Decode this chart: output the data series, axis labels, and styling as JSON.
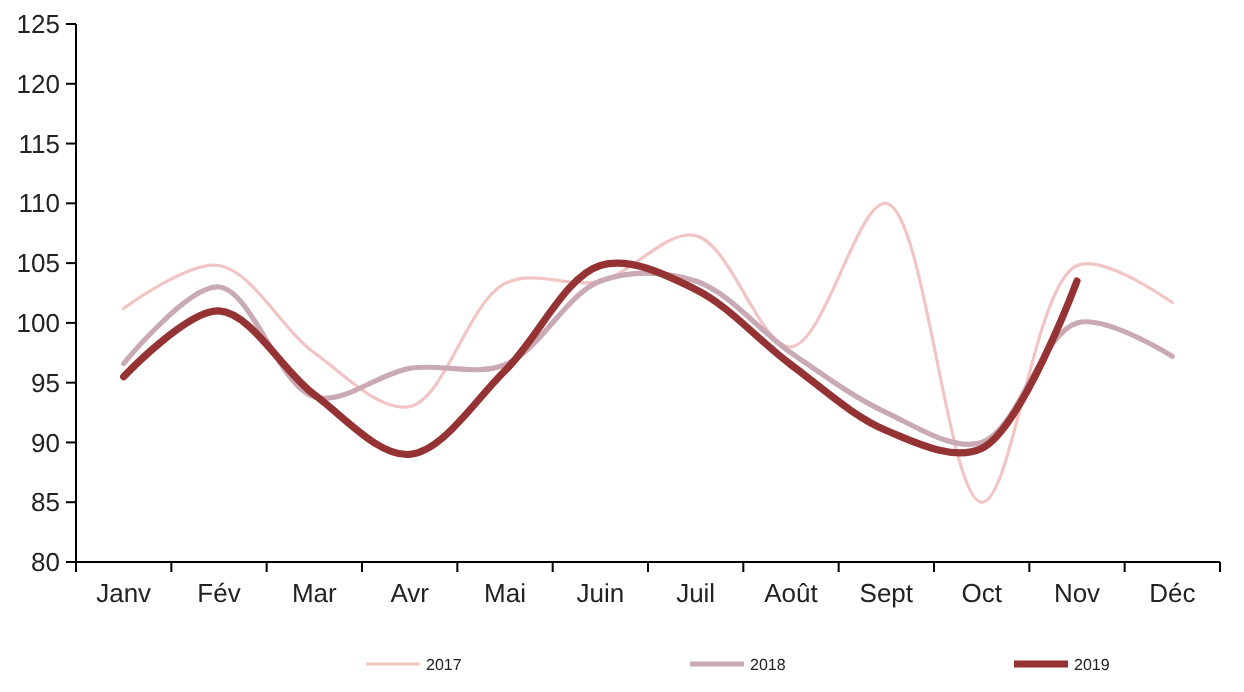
{
  "chart_data": {
    "type": "line",
    "categories": [
      "Janv",
      "Fév",
      "Mar",
      "Avr",
      "Mai",
      "Juin",
      "Juil",
      "Août",
      "Sept",
      "Oct",
      "Nov",
      "Déc"
    ],
    "series": [
      {
        "name": "2017",
        "color": "#f2c4c4",
        "values": [
          101.2,
          104.8,
          97.5,
          93,
          103.3,
          103.5,
          107.3,
          98,
          110,
          85,
          104.8,
          101.7
        ]
      },
      {
        "name": "2018",
        "color": "#c9aab4",
        "values": [
          96.6,
          103,
          93.8,
          96.2,
          96.5,
          103.5,
          103.5,
          97.5,
          92.5,
          90,
          100,
          97.2
        ]
      },
      {
        "name": "2019",
        "color": "#953234",
        "values": [
          95.5,
          101,
          94,
          89,
          96,
          104.8,
          102.8,
          96.5,
          91,
          89.5,
          103.5,
          null
        ]
      }
    ],
    "ylim": [
      80,
      125
    ],
    "yticks": [
      80,
      85,
      90,
      95,
      100,
      105,
      110,
      115,
      120,
      125
    ],
    "grid": false,
    "legend": "bottom",
    "marker": "none",
    "line_style": "solid"
  }
}
